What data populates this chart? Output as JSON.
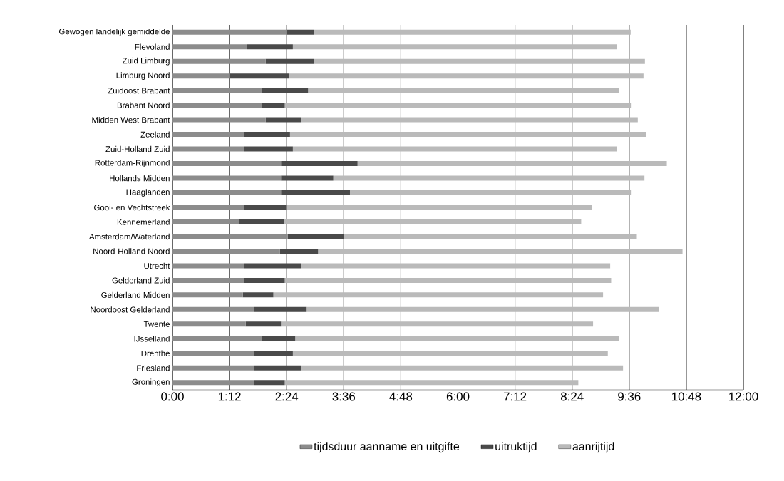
{
  "chart_data": {
    "type": "bar",
    "orientation": "horizontal",
    "stacked": true,
    "grid": "x",
    "legend": "bottom",
    "categories": [
      "Gewogen landelijk gemiddelde",
      "Flevoland",
      "Zuid Limburg",
      "Limburg Noord",
      "Zuidoost Brabant",
      "Brabant Noord",
      "Midden West Brabant",
      "Zeeland",
      "Zuid-Holland Zuid",
      "Rotterdam-Rijnmond",
      "Hollands Midden",
      "Haaglanden",
      "Gooi- en Vechtstreek",
      "Kennemerland",
      "Amsterdam/Waterland",
      "Noord-Holland Noord",
      "Utrecht",
      "Gelderland Zuid",
      "Gelderland Midden",
      "Noordoost Gelderland",
      "Twente",
      "IJsselland",
      "Drenthe",
      "Friesland",
      "Groningen"
    ],
    "series": [
      {
        "name": "tijdsduur aanname en uitgifte",
        "color": "#8c8c8c",
        "values": [
          2.39,
          1.56,
          1.96,
          1.21,
          1.88,
          1.88,
          1.96,
          1.51,
          1.51,
          2.28,
          2.28,
          2.28,
          1.51,
          1.4,
          2.42,
          2.26,
          1.51,
          1.51,
          1.48,
          1.72,
          1.54,
          1.88,
          1.72,
          1.72,
          1.72
        ]
      },
      {
        "name": "uitruktijd",
        "color": "#4a4a4a",
        "values": [
          0.59,
          0.97,
          1.02,
          1.24,
          0.97,
          0.48,
          0.75,
          0.96,
          1.02,
          1.61,
          1.1,
          1.45,
          0.88,
          0.94,
          1.18,
          0.8,
          1.2,
          0.85,
          0.64,
          1.1,
          0.74,
          0.7,
          0.81,
          0.99,
          0.64
        ]
      },
      {
        "name": "aanrijtijd",
        "color": "#bababa",
        "values": [
          6.65,
          6.81,
          6.95,
          7.45,
          6.53,
          7.29,
          7.07,
          7.49,
          6.81,
          6.5,
          6.54,
          5.92,
          6.42,
          6.25,
          6.16,
          7.66,
          6.49,
          6.86,
          6.93,
          7.4,
          6.56,
          6.8,
          6.62,
          6.76,
          6.17
        ]
      }
    ],
    "xlim": [
      0,
      12
    ],
    "xticks": [
      {
        "value": 0,
        "label": "0:00"
      },
      {
        "value": 1.2,
        "label": "1:12"
      },
      {
        "value": 2.4,
        "label": "2:24"
      },
      {
        "value": 3.6,
        "label": "3:36"
      },
      {
        "value": 4.8,
        "label": "4:48"
      },
      {
        "value": 6,
        "label": "6:00"
      },
      {
        "value": 7.2,
        "label": "7:12"
      },
      {
        "value": 8.4,
        "label": "8:24"
      },
      {
        "value": 9.6,
        "label": "9:36"
      },
      {
        "value": 10.8,
        "label": "10:48"
      },
      {
        "value": 12,
        "label": "12:00"
      }
    ]
  }
}
